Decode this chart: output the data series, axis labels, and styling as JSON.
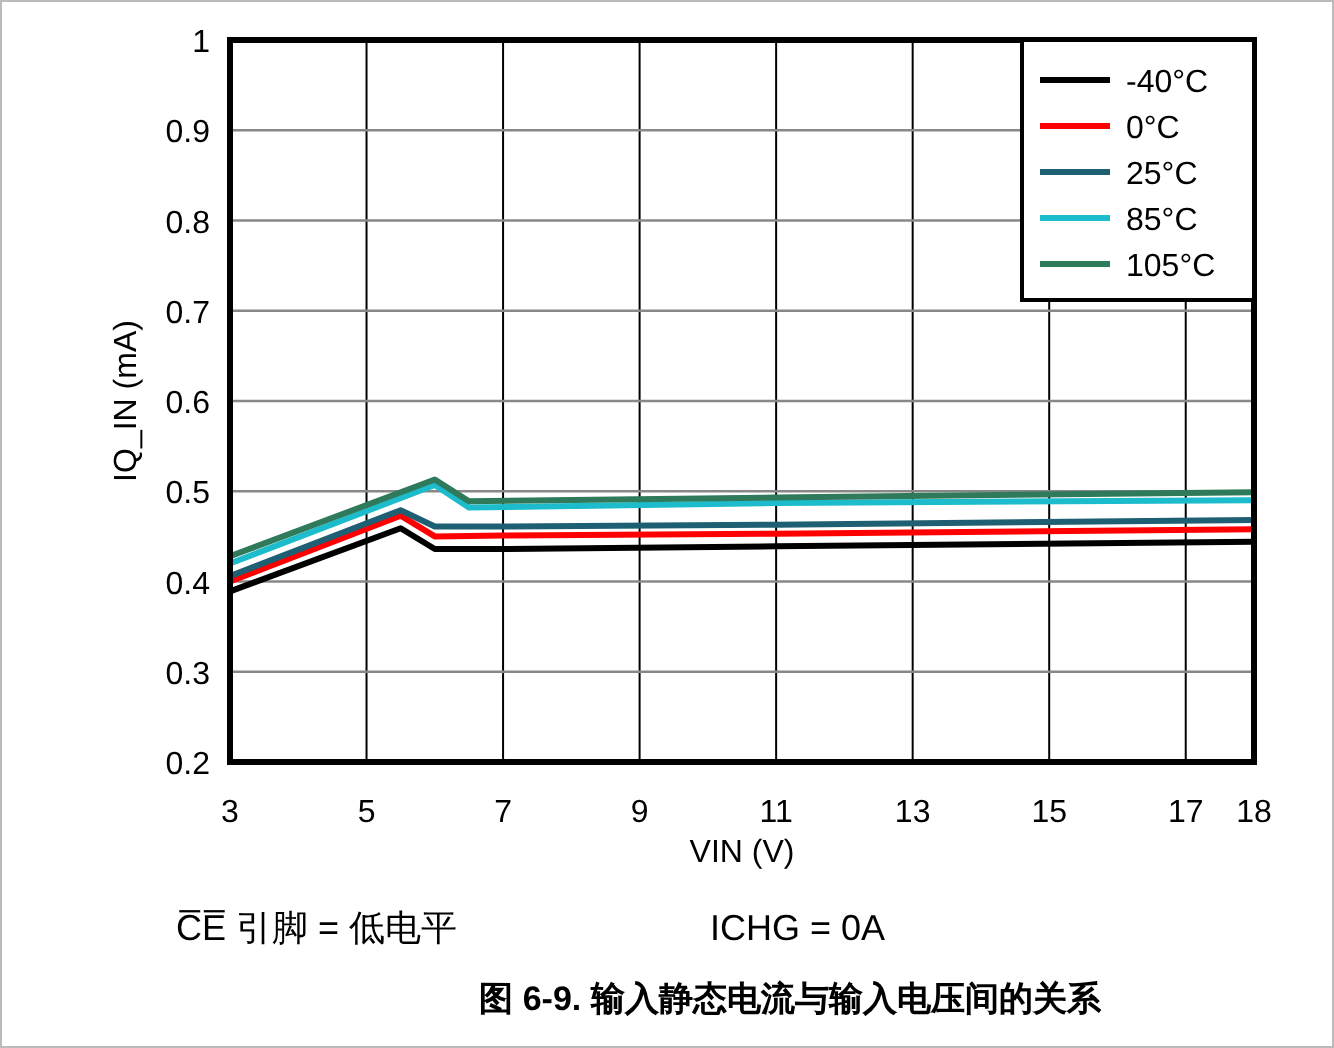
{
  "chart_data": {
    "type": "line",
    "title": "图 6-9. 输入静态电流与输入电压间的关系",
    "xlabel": "VIN (V)",
    "ylabel": "IQ_IN (mA)",
    "annotations": [
      "C̅E̅ 引脚 = 低电平",
      "ICHG = 0A"
    ],
    "xlim": [
      3,
      18
    ],
    "xticks": [
      3,
      5,
      7,
      9,
      11,
      13,
      15,
      17,
      18
    ],
    "ylim": [
      0.2,
      1
    ],
    "yticks": [
      0.2,
      0.3,
      0.4,
      0.5,
      0.6,
      0.7,
      0.8,
      0.9,
      1
    ],
    "grid": true,
    "legend": "top right",
    "line_style": "solid",
    "marker": "none",
    "series": [
      {
        "name": "-40°C",
        "color": "#000000",
        "x": [
          3,
          5.5,
          6,
          7,
          11,
          18
        ],
        "values": [
          0.389,
          0.459,
          0.436,
          0.436,
          0.439,
          0.444
        ]
      },
      {
        "name": "0°C",
        "color": "#ff0000",
        "x": [
          3,
          5.5,
          6,
          7,
          11,
          18
        ],
        "values": [
          0.4,
          0.473,
          0.45,
          0.451,
          0.453,
          0.458
        ]
      },
      {
        "name": "25°C",
        "color": "#1f5f73",
        "x": [
          3,
          5.5,
          6,
          7,
          11,
          18
        ],
        "values": [
          0.406,
          0.479,
          0.461,
          0.461,
          0.463,
          0.468
        ]
      },
      {
        "name": "85°C",
        "color": "#1cbccc",
        "x": [
          3,
          6,
          6.5,
          11,
          18
        ],
        "values": [
          0.42,
          0.507,
          0.482,
          0.487,
          0.49
        ]
      },
      {
        "name": "105°C",
        "color": "#2e7a5a",
        "x": [
          3,
          6,
          6.5,
          11,
          18
        ],
        "values": [
          0.428,
          0.513,
          0.489,
          0.493,
          0.499
        ]
      }
    ]
  }
}
